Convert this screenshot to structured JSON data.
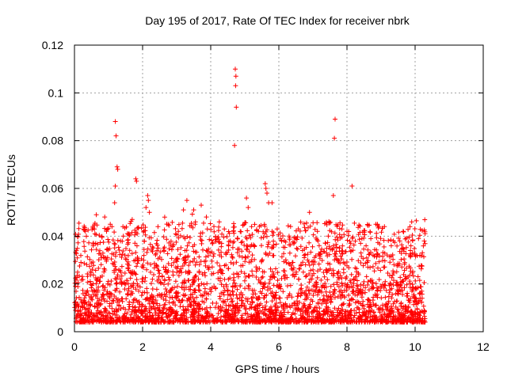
{
  "chart_data": {
    "type": "scatter",
    "title": "Day 195 of 2017, Rate Of TEC Index for receiver nbrk",
    "xlabel": "GPS time / hours",
    "ylabel": "ROTI / TECUs",
    "xlim": [
      0,
      12
    ],
    "ylim": [
      0,
      0.12
    ],
    "xticks": [
      0,
      2,
      4,
      6,
      8,
      10,
      12
    ],
    "yticks": [
      0,
      0.02,
      0.04,
      0.06,
      0.08,
      0.1,
      0.12
    ],
    "xtick_labels": [
      "0",
      "2",
      "4",
      "6",
      "8",
      "10",
      "12"
    ],
    "ytick_labels": [
      "0",
      "0.02",
      "0.04",
      "0.06",
      "0.08",
      "0.1",
      "0.12"
    ],
    "grid": true,
    "marker": "+",
    "color": "#ff0000",
    "x_range_of_data": [
      0,
      10.3
    ],
    "series": [
      {
        "points": [
          [
            1.2,
            0.088
          ],
          [
            1.22,
            0.082
          ],
          [
            1.25,
            0.069
          ],
          [
            1.27,
            0.068
          ],
          [
            1.2,
            0.061
          ],
          [
            1.18,
            0.054
          ],
          [
            1.8,
            0.064
          ],
          [
            1.82,
            0.063
          ],
          [
            2.15,
            0.057
          ],
          [
            2.17,
            0.055
          ],
          [
            2.2,
            0.05
          ],
          [
            2.1,
            0.052
          ],
          [
            3.3,
            0.055
          ],
          [
            3.5,
            0.051
          ],
          [
            3.72,
            0.053
          ],
          [
            3.2,
            0.051
          ],
          [
            2.65,
            0.048
          ],
          [
            4.72,
            0.11
          ],
          [
            4.74,
            0.107
          ],
          [
            4.73,
            0.103
          ],
          [
            4.75,
            0.094
          ],
          [
            4.7,
            0.078
          ],
          [
            5.05,
            0.056
          ],
          [
            5.1,
            0.052
          ],
          [
            5.6,
            0.062
          ],
          [
            5.62,
            0.06
          ],
          [
            5.65,
            0.058
          ],
          [
            5.7,
            0.054
          ],
          [
            5.8,
            0.054
          ],
          [
            6.9,
            0.05
          ],
          [
            7.65,
            0.089
          ],
          [
            7.63,
            0.081
          ],
          [
            7.6,
            0.057
          ],
          [
            8.15,
            0.061
          ],
          [
            8.0,
            0.042
          ],
          [
            8.85,
            0.045
          ],
          [
            9.1,
            0.044
          ],
          [
            9.9,
            0.046
          ],
          [
            9.85,
            0.044
          ],
          [
            10.1,
            0.039
          ],
          [
            0.3,
            0.043
          ],
          [
            0.32,
            0.042
          ],
          [
            0.6,
            0.041
          ],
          [
            1.05,
            0.045
          ],
          [
            1.1,
            0.044
          ],
          [
            1.6,
            0.041
          ],
          [
            1.35,
            0.038
          ],
          [
            2.45,
            0.044
          ],
          [
            2.75,
            0.045
          ],
          [
            3.05,
            0.042
          ],
          [
            3.55,
            0.046
          ],
          [
            3.9,
            0.043
          ],
          [
            4.25,
            0.046
          ],
          [
            4.4,
            0.043
          ],
          [
            5.2,
            0.044
          ],
          [
            5.4,
            0.042
          ],
          [
            5.95,
            0.043
          ],
          [
            6.3,
            0.04
          ],
          [
            6.5,
            0.039
          ],
          [
            7.15,
            0.038
          ],
          [
            7.45,
            0.04
          ],
          [
            7.85,
            0.043
          ],
          [
            8.4,
            0.037
          ],
          [
            8.7,
            0.039
          ],
          [
            9.3,
            0.036
          ],
          [
            9.55,
            0.038
          ]
        ]
      }
    ]
  }
}
